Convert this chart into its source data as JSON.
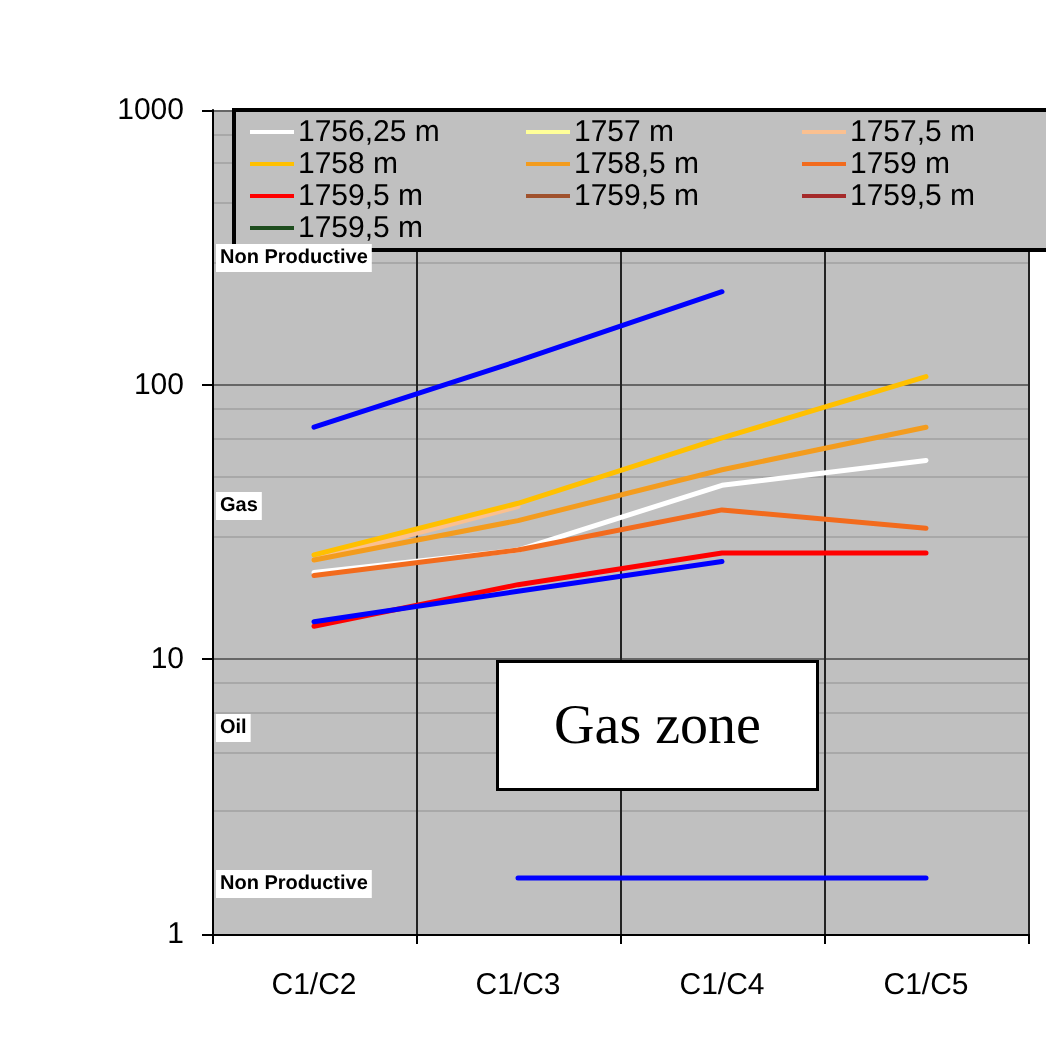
{
  "chart_data": {
    "type": "line",
    "categories": [
      "C1/C2",
      "C1/C3",
      "C1/C4",
      "C1/C5"
    ],
    "log": "y",
    "ylim": [
      1,
      1000
    ],
    "yticks": [
      1,
      10,
      100,
      1000
    ],
    "grid": true,
    "legend": "top",
    "series": [
      {
        "name": "1756,25 m",
        "color": "#ffffff",
        "values": [
          20.7,
          25,
          43,
          53
        ]
      },
      {
        "name": "1757 m",
        "color": "#ffff99",
        "values": [
          null,
          null,
          null,
          null
        ]
      },
      {
        "name": "1757,5 m",
        "color": "#fac090",
        "values": [
          23,
          36,
          null,
          null
        ]
      },
      {
        "name": "1758 m",
        "color": "#ffc000",
        "values": [
          24,
          37,
          64,
          107
        ]
      },
      {
        "name": "1758,5 m",
        "color": "#f39c1e",
        "values": [
          23,
          32,
          49,
          70
        ]
      },
      {
        "name": "1759 m",
        "color": "#f26b1d",
        "values": [
          20.2,
          25,
          35,
          30
        ]
      },
      {
        "name": "1759,5 m",
        "color": "#ff0000",
        "values": [
          13.2,
          18.7,
          24.4,
          24.4
        ]
      },
      {
        "name": "1759,5 m",
        "color": "#a0522d",
        "values": [
          null,
          null,
          null,
          null
        ]
      },
      {
        "name": "1759,5 m",
        "color": "#a52a2a",
        "values": [
          null,
          null,
          null,
          null
        ]
      },
      {
        "name": "1759,5 m",
        "color": "#1e4d1e",
        "values": [
          null,
          null,
          null,
          null
        ]
      },
      {
        "color": "#0000ff",
        "values": [
          70,
          122,
          218,
          null
        ]
      },
      {
        "color": "#0000ff",
        "values": [
          13.7,
          17.7,
          22.7,
          null
        ]
      },
      {
        "color": "#0000ff",
        "values": [
          null,
          1.6,
          1.6,
          1.6
        ]
      }
    ],
    "annotations": [
      "Non Productive",
      "Gas",
      "Oil",
      "Non Productive",
      "Gas zone"
    ]
  }
}
